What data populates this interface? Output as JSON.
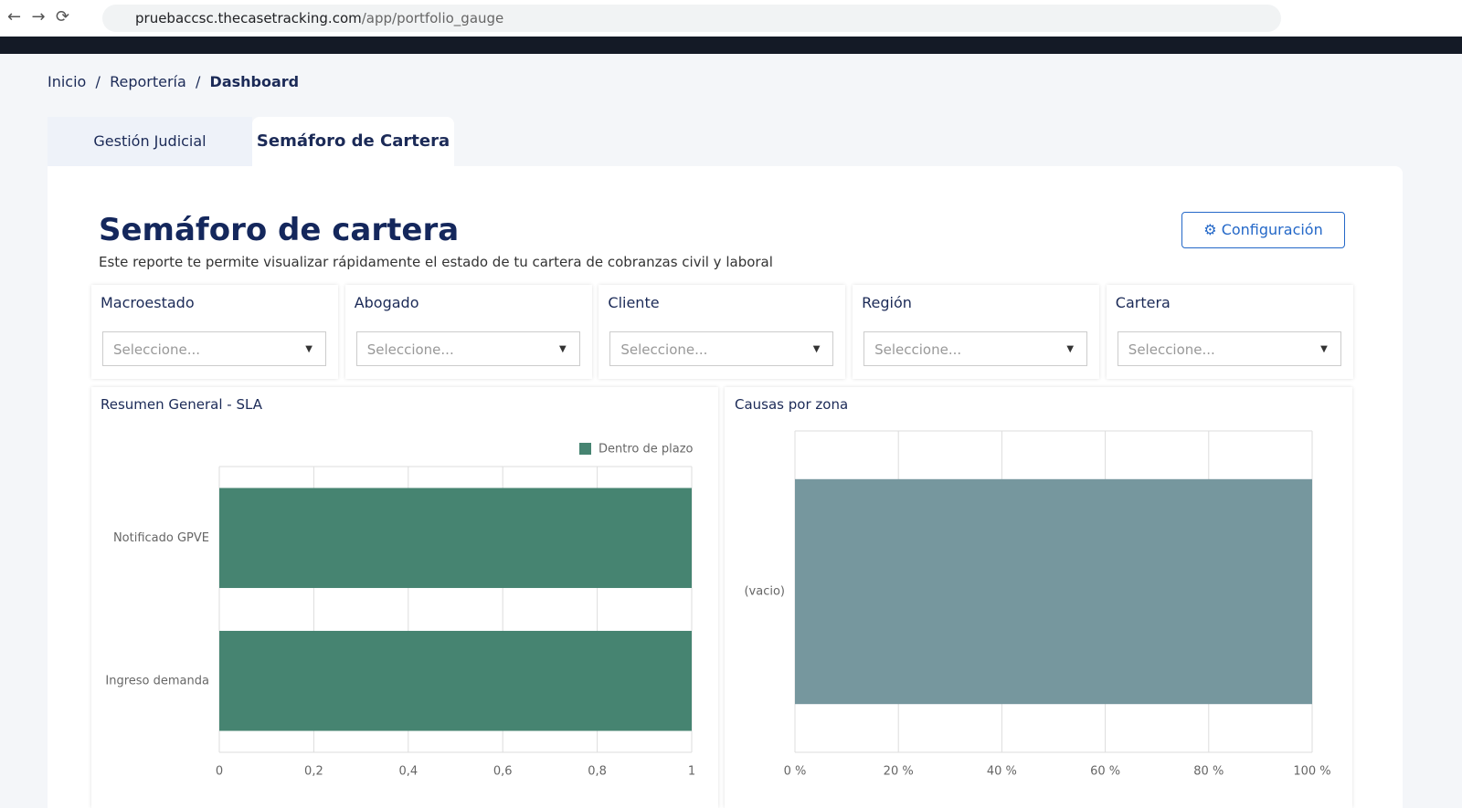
{
  "browser": {
    "host": "pruebaccsc.thecasetracking.com",
    "path": "/app/portfolio_gauge"
  },
  "breadcrumb": [
    "Inicio",
    "Reportería",
    "Dashboard"
  ],
  "tabs": [
    "Gestión Judicial",
    "Semáforo de Cartera"
  ],
  "header": {
    "title": "Semáforo de cartera",
    "subtitle": "Este reporte te permite visualizar rápidamente el estado de tu cartera de cobranzas civil y laboral",
    "button": "Configuración"
  },
  "filters": [
    {
      "label": "Macroestado",
      "placeholder": "Seleccione..."
    },
    {
      "label": "Abogado",
      "placeholder": "Seleccione..."
    },
    {
      "label": "Cliente",
      "placeholder": "Seleccione..."
    },
    {
      "label": "Región",
      "placeholder": "Seleccione..."
    },
    {
      "label": "Cartera",
      "placeholder": "Seleccione..."
    }
  ],
  "chart_data": [
    {
      "type": "hbar",
      "title": "Resumen General - SLA",
      "categories": [
        "Notificado GPVE",
        "Ingreso demanda"
      ],
      "series": [
        {
          "name": "Dentro de plazo",
          "color": "#468471",
          "values": [
            1,
            1
          ]
        }
      ],
      "xlim": [
        0,
        1
      ],
      "xticks": [
        0,
        {
          "value": 0.2,
          "label": "0,2"
        },
        {
          "value": 0.4,
          "label": "0,4"
        },
        {
          "value": 0.6,
          "label": "0,6"
        },
        {
          "value": 0.8,
          "label": "0,8"
        },
        1
      ],
      "grid": true
    },
    {
      "type": "hbar",
      "title": "Causas por zona",
      "categories": [
        "(vacio)"
      ],
      "values": [
        100
      ],
      "color": "#76979e",
      "xlim": [
        0,
        100
      ],
      "xticks": [
        {
          "value": 0,
          "label": "0 %"
        },
        {
          "value": 20,
          "label": "20 %"
        },
        {
          "value": 40,
          "label": "40 %"
        },
        {
          "value": 60,
          "label": "60 %"
        },
        {
          "value": 80,
          "label": "80 %"
        },
        {
          "value": 100,
          "label": "100 %"
        }
      ],
      "grid": true
    }
  ]
}
